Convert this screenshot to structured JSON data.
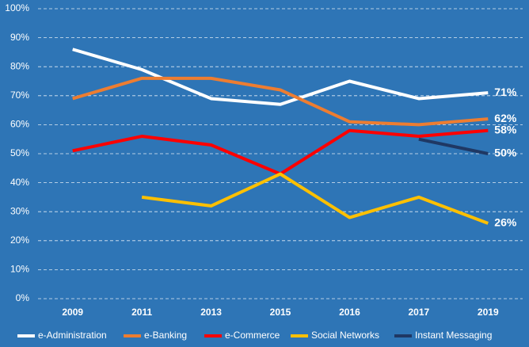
{
  "chart_data": {
    "type": "line",
    "categories": [
      "2009",
      "2011",
      "2013",
      "2015",
      "2016",
      "2017",
      "2019"
    ],
    "series": [
      {
        "name": "e-Administration",
        "color": "#ffffff",
        "values": [
          86,
          79,
          69,
          67,
          75,
          69,
          71
        ],
        "value_labels": [
          null,
          null,
          null,
          null,
          null,
          null,
          "71%"
        ]
      },
      {
        "name": "e-Banking",
        "color": "#ed7d31",
        "values": [
          69,
          76,
          76,
          72,
          61,
          60,
          62
        ],
        "value_labels": [
          null,
          null,
          null,
          null,
          null,
          null,
          "62%"
        ]
      },
      {
        "name": "e-Commerce",
        "color": "#ff0000",
        "values": [
          51,
          56,
          53,
          43,
          58,
          56,
          58
        ],
        "value_labels": [
          null,
          null,
          null,
          null,
          null,
          null,
          "58%"
        ]
      },
      {
        "name": "Social Networks",
        "color": "#ffc000",
        "values": [
          null,
          35,
          32,
          43,
          28,
          35,
          26
        ],
        "value_labels": [
          null,
          null,
          null,
          null,
          null,
          null,
          "26%"
        ]
      },
      {
        "name": "Instant Messaging",
        "color": "#1f3864",
        "values": [
          null,
          null,
          null,
          null,
          null,
          55,
          50
        ],
        "value_labels": [
          null,
          null,
          null,
          null,
          null,
          null,
          "50%"
        ]
      }
    ],
    "ylim": [
      0,
      100
    ],
    "yticks": [
      {
        "value": 0,
        "label": "0%"
      },
      {
        "value": 10,
        "label": "10%"
      },
      {
        "value": 20,
        "label": "20%"
      },
      {
        "value": 30,
        "label": "30%"
      },
      {
        "value": 40,
        "label": "40%"
      },
      {
        "value": 50,
        "label": "50%"
      },
      {
        "value": 60,
        "label": "60%"
      },
      {
        "value": 70,
        "label": "70%"
      },
      {
        "value": 80,
        "label": "80%"
      },
      {
        "value": 90,
        "label": "90%"
      },
      {
        "value": 100,
        "label": "100%"
      }
    ],
    "grid": true,
    "legend": "bottom"
  }
}
